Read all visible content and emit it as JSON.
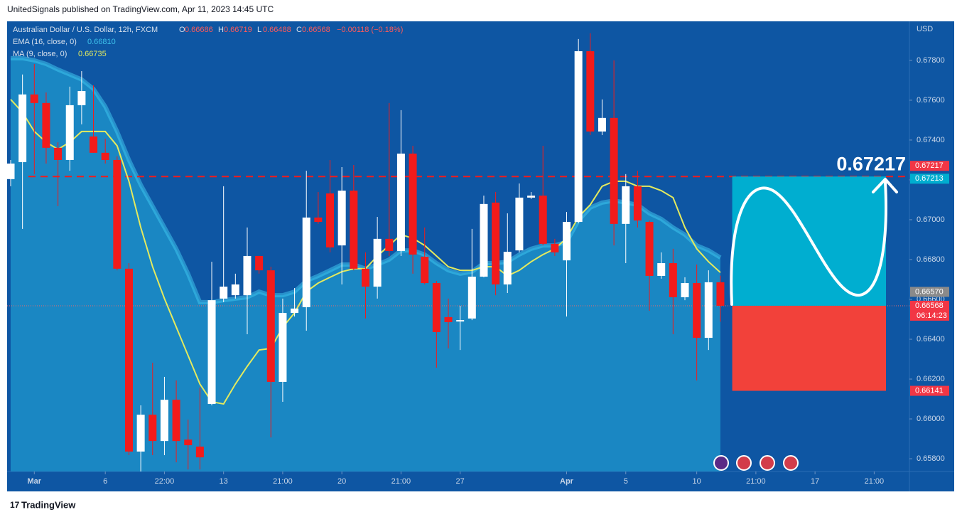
{
  "header": {
    "publisher": "UnitedSignals published on TradingView.com, Apr 11, 2023 14:45 UTC",
    "footer": "TradingView"
  },
  "chart_data": {
    "type": "candlestick",
    "title": "Australian Dollar / U.S. Dollar, 12h, FXCM",
    "ohlc_legend": [
      {
        "key": "O",
        "label": "0.66686"
      },
      {
        "key": "H",
        "label": "0.66719"
      },
      {
        "key": "L",
        "label": "0.66488"
      },
      {
        "key": "C",
        "label": "0.66568"
      }
    ],
    "change": "−0.00118 (−0.18%)",
    "currency": "USD",
    "up_color": "#ffffff",
    "down_color": "#f21b1b",
    "open": [
      0.67204,
      0.67289,
      0.67629,
      0.67586,
      0.67361,
      0.673,
      0.67575,
      0.67418,
      0.67336,
      0.673,
      0.66754,
      0.65836,
      0.66021,
      0.65889,
      0.66096,
      0.65896,
      0.65861,
      0.66075,
      0.66604,
      0.66621,
      0.66621,
      0.66818,
      0.66746,
      0.66186,
      0.66532,
      0.66561,
      0.67011,
      0.67132,
      0.66871,
      0.67146,
      0.66754,
      0.66664,
      0.66904,
      0.66843,
      0.67332,
      0.66814,
      0.66682,
      0.66511,
      0.66489,
      0.66504,
      0.66714,
      0.67086,
      0.66675,
      0.66846,
      0.67111,
      0.67121,
      0.66879,
      0.66796,
      0.66989,
      0.67846,
      0.67443,
      0.67511,
      0.66979,
      0.67168,
      0.66989,
      0.66718,
      0.66782,
      0.66611,
      0.66682,
      0.66407,
      0.66686
    ],
    "high": [
      0.673,
      0.67729,
      0.67782,
      0.67639,
      0.67389,
      0.67668,
      0.67746,
      0.67675,
      0.67407,
      0.67318,
      0.66782,
      0.66068,
      0.66282,
      0.66211,
      0.66193,
      0.65996,
      0.66157,
      0.66789,
      0.67168,
      0.66729,
      0.66961,
      0.66818,
      0.66764,
      0.66604,
      0.66657,
      0.67246,
      0.67139,
      0.673,
      0.67264,
      0.67275,
      0.66836,
      0.67014,
      0.67586,
      0.6755,
      0.67371,
      0.66961,
      0.66693,
      0.66604,
      0.66568,
      0.66954,
      0.67121,
      0.67139,
      0.67032,
      0.67182,
      0.67139,
      0.67371,
      0.66904,
      0.67039,
      0.67907,
      0.67936,
      0.67604,
      0.678,
      0.67229,
      0.67246,
      0.66996,
      0.66836,
      0.66854,
      0.66711,
      0.66775,
      0.66746,
      0.66719
    ],
    "low": [
      0.67168,
      0.66954,
      0.67229,
      0.67282,
      0.67068,
      0.67246,
      0.67479,
      0.67336,
      0.67282,
      0.66746,
      0.65818,
      0.65736,
      0.65818,
      0.65818,
      0.65782,
      0.65746,
      0.65746,
      0.66068,
      0.66586,
      0.66604,
      0.66425,
      0.66729,
      0.65907,
      0.66086,
      0.66514,
      0.66443,
      0.66979,
      0.66836,
      0.66675,
      0.66746,
      0.66504,
      0.66604,
      0.66818,
      0.66818,
      0.66729,
      0.66675,
      0.66257,
      0.66354,
      0.66346,
      0.66496,
      0.66711,
      0.66621,
      0.66632,
      0.66836,
      0.67104,
      0.66871,
      0.66818,
      0.66514,
      0.66982,
      0.67425,
      0.67425,
      0.66871,
      0.66782,
      0.66961,
      0.66543,
      0.66704,
      0.66425,
      0.66596,
      0.66193,
      0.66346,
      0.66488
    ],
    "close": [
      0.67282,
      0.67629,
      0.67586,
      0.67361,
      0.673,
      0.67575,
      0.67646,
      0.67336,
      0.673,
      0.66754,
      0.65836,
      0.66021,
      0.65889,
      0.66096,
      0.65889,
      0.65868,
      0.65807,
      0.66596,
      0.66664,
      0.66675,
      0.66818,
      0.66746,
      0.66186,
      0.66532,
      0.66554,
      0.67011,
      0.66989,
      0.66861,
      0.67146,
      0.66754,
      0.66664,
      0.66904,
      0.66843,
      0.67332,
      0.66825,
      0.66682,
      0.66436,
      0.66486,
      0.66496,
      0.66714,
      0.67079,
      0.66675,
      0.66839,
      0.67111,
      0.67121,
      0.66879,
      0.66836,
      0.66989,
      0.67846,
      0.67443,
      0.67511,
      0.66979,
      0.67168,
      0.66996,
      0.66718,
      0.66782,
      0.66611,
      0.66682,
      0.66407,
      0.66686,
      0.66568
    ],
    "series": [
      {
        "name": "EMA (16, close, 0)",
        "last_label": "0.66810",
        "color": "#3ec3ec",
        "fill": "#1a87c3",
        "values": [
          0.67811,
          0.67811,
          0.678,
          0.67782,
          0.67754,
          0.67729,
          0.67704,
          0.67657,
          0.67568,
          0.67443,
          0.673,
          0.67175,
          0.67068,
          0.66961,
          0.66854,
          0.66729,
          0.66586,
          0.66586,
          0.66596,
          0.66604,
          0.66611,
          0.66639,
          0.66621,
          0.66621,
          0.66639,
          0.66693,
          0.66718,
          0.66746,
          0.66775,
          0.66775,
          0.66754,
          0.66775,
          0.668,
          0.66846,
          0.66846,
          0.66825,
          0.66782,
          0.66746,
          0.66729,
          0.66739,
          0.66782,
          0.66782,
          0.66789,
          0.66825,
          0.66854,
          0.66871,
          0.66871,
          0.66889,
          0.66996,
          0.67061,
          0.67086,
          0.67096,
          0.67086,
          0.67075,
          0.67032,
          0.67004,
          0.66961,
          0.66925,
          0.66871,
          0.66846,
          0.6681
        ]
      },
      {
        "name": "MA (9, close, 0)",
        "last_label": "0.66735",
        "color": "#e4ea5e",
        "values": [
          0.67604,
          0.67539,
          0.67443,
          0.67389,
          0.67354,
          0.67389,
          0.67443,
          0.67443,
          0.67443,
          0.67371,
          0.67193,
          0.66961,
          0.66764,
          0.66604,
          0.66461,
          0.66318,
          0.66175,
          0.66086,
          0.66075,
          0.66175,
          0.66264,
          0.66346,
          0.66354,
          0.66461,
          0.66532,
          0.66639,
          0.66682,
          0.66711,
          0.66739,
          0.66754,
          0.66754,
          0.66818,
          0.66871,
          0.66925,
          0.66907,
          0.66871,
          0.66818,
          0.66764,
          0.66746,
          0.66746,
          0.66764,
          0.66764,
          0.66718,
          0.66746,
          0.66789,
          0.66825,
          0.66854,
          0.66907,
          0.67014,
          0.67075,
          0.67168,
          0.67193,
          0.67193,
          0.67168,
          0.67168,
          0.67146,
          0.67111,
          0.66961,
          0.66854,
          0.66789,
          0.66735
        ]
      }
    ],
    "ylim": [
      0.65736,
      0.67996
    ],
    "yticks": [
      {
        "value": 0.658,
        "label": "0.65800"
      },
      {
        "value": 0.66,
        "label": "0.66000"
      },
      {
        "value": 0.662,
        "label": "0.66200"
      },
      {
        "value": 0.664,
        "label": "0.66400"
      },
      {
        "value": 0.666,
        "label": "0.66600"
      },
      {
        "value": 0.668,
        "label": "0.66800"
      },
      {
        "value": 0.67,
        "label": "0.67000"
      },
      {
        "value": 0.672,
        "label": "0.67200"
      },
      {
        "value": 0.674,
        "label": "0.67400"
      },
      {
        "value": 0.676,
        "label": "0.67600"
      },
      {
        "value": 0.678,
        "label": "0.67800"
      }
    ],
    "xlim": [
      -0.3,
      75.98
    ],
    "xticks": [
      {
        "value": 2,
        "label": "Mar"
      },
      {
        "value": 8,
        "label": "6"
      },
      {
        "value": 13,
        "label": "22:00"
      },
      {
        "value": 18,
        "label": "13"
      },
      {
        "value": 23,
        "label": "21:00"
      },
      {
        "value": 28,
        "label": "20"
      },
      {
        "value": 33,
        "label": "21:00"
      },
      {
        "value": 38,
        "label": "27"
      },
      {
        "value": 47,
        "label": "Apr"
      },
      {
        "value": 52,
        "label": "5"
      },
      {
        "value": 58,
        "label": "10"
      },
      {
        "value": 63,
        "label": "21:00"
      },
      {
        "value": 68,
        "label": "17"
      },
      {
        "value": 73,
        "label": "21:00"
      }
    ],
    "target_text": {
      "value": 0.67217,
      "label": "0.67217"
    },
    "position": {
      "start": 61,
      "end": 74,
      "target": 0.67217,
      "entry": 0.66568,
      "stop": 0.66141,
      "target_color": "#00aed0",
      "stop_color": "#f2413a"
    },
    "price_labels": [
      {
        "value": 0.67217,
        "label": "0.67217",
        "color": "#f23645"
      },
      {
        "value": 0.67213,
        "label": "0.67213",
        "color": "#00aed0"
      },
      {
        "value": 0.6657,
        "label": "0.66570",
        "color": "#8a8a8a"
      },
      {
        "value": 0.66568,
        "label": "0.66568",
        "color": "#f23645"
      },
      {
        "value": 0.66141,
        "label": "0.66141",
        "color": "#f23645"
      }
    ],
    "countdown": "06:14:23"
  }
}
